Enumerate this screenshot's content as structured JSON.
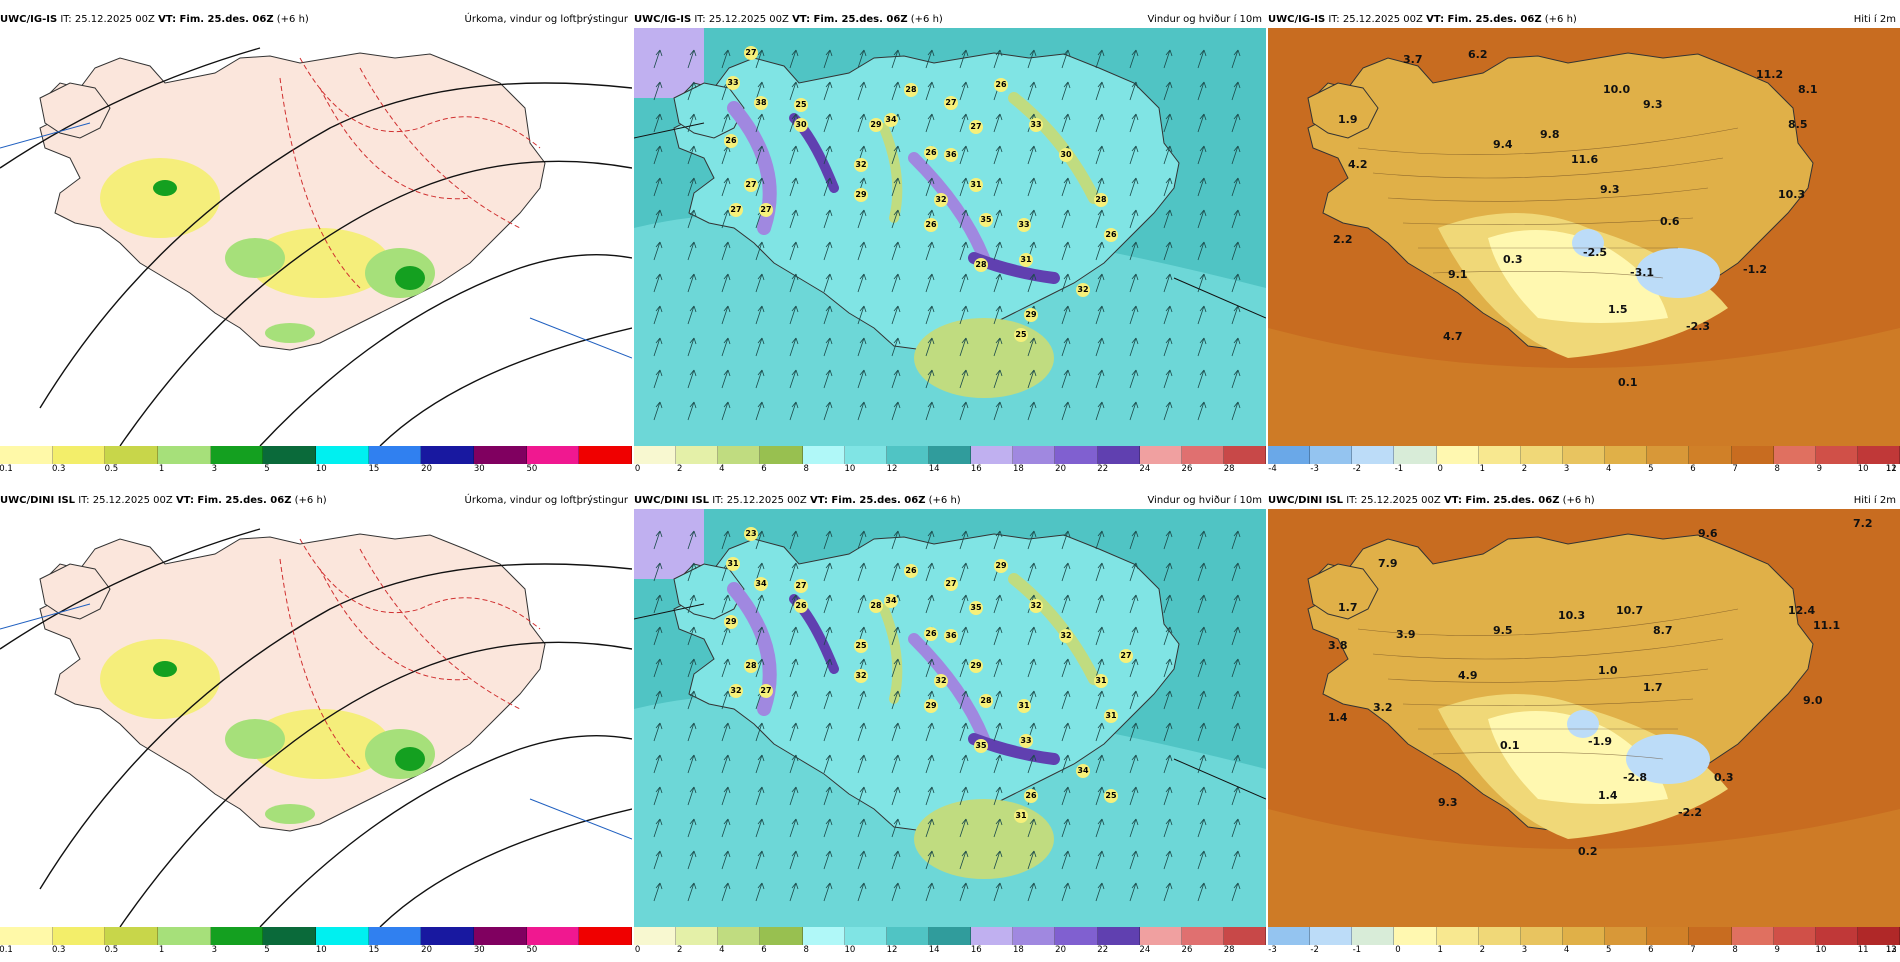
{
  "panels": [
    {
      "model": "UWC/IG-IS",
      "it": "IT: 25.12.2025 00Z",
      "vt": "VT: Fim. 25.des. 06Z",
      "step": "(+6 h)",
      "title": "Úrkoma, vindur og loftþrýstingur",
      "kind": "precip",
      "colorbar": {
        "colors": [
          "#fff9a8",
          "#f3ee6a",
          "#c8d64a",
          "#a6e07a",
          "#14a020",
          "#0a6a3a",
          "#00f0f0",
          "#3080f0",
          "#1818a0",
          "#800060",
          "#f01890",
          "#f00000"
        ],
        "labels": [
          "0.1",
          "0.3",
          "0.5",
          "1",
          "3",
          "5",
          "10",
          "15",
          "20",
          "30",
          "50"
        ]
      },
      "values": []
    },
    {
      "model": "UWC/IG-IS",
      "it": "IT: 25.12.2025 00Z",
      "vt": "VT: Fim. 25.des. 06Z",
      "step": "(+6 h)",
      "title": "Vindur og hviður í 10m",
      "kind": "wind",
      "colorbar": {
        "colors": [
          "#f8f8d0",
          "#e4f0a8",
          "#c0dc80",
          "#98c050",
          "#b0f8f8",
          "#80e4e4",
          "#50c4c4",
          "#309c9c",
          "#c0b0f0",
          "#a088e0",
          "#8060d0",
          "#6040b0",
          "#f0a0a0",
          "#e07070",
          "#c84848"
        ],
        "labels": [
          "0",
          "2",
          "4",
          "6",
          "8",
          "10",
          "12",
          "14",
          "16",
          "18",
          "20",
          "22",
          "24",
          "26",
          "28"
        ]
      },
      "values": [
        "27",
        "33",
        "38",
        "25",
        "30",
        "26",
        "27",
        "27",
        "27",
        "26",
        "28",
        "32",
        "27",
        "27",
        "36",
        "34",
        "29",
        "26",
        "31",
        "33",
        "29",
        "26",
        "32",
        "35",
        "33",
        "28",
        "31",
        "29",
        "25",
        "30",
        "28",
        "26",
        "32"
      ]
    },
    {
      "model": "UWC/IG-IS",
      "it": "IT: 25.12.2025 00Z",
      "vt": "VT: Fim. 25.des. 06Z",
      "step": "(+6 h)",
      "title": "Hiti í 2m",
      "kind": "temp",
      "colorbar": {
        "colors": [
          "#6aa8e8",
          "#94c4f0",
          "#bcdcf8",
          "#d8ecd8",
          "#fff8b0",
          "#f8e890",
          "#f0d878",
          "#e8c460",
          "#e0b048",
          "#d89838",
          "#d08028",
          "#c86c20",
          "#e07060",
          "#d05048",
          "#c03838"
        ],
        "labels": [
          "-4",
          "-3",
          "-2",
          "-1",
          "0",
          "1",
          "2",
          "3",
          "4",
          "5",
          "6",
          "7",
          "8",
          "9",
          "10",
          "11",
          "12"
        ]
      },
      "values": [
        "3.7",
        "6.2",
        "1.9",
        "10.0",
        "9.3",
        "11.2",
        "8.1",
        "4.2",
        "9.4",
        "9.8",
        "11.6",
        "8.5",
        "9.3",
        "10.3",
        "0.6",
        "2.2",
        "0.3",
        "-2.5",
        "-3.1",
        "-1.2",
        "9.1",
        "1.5",
        "-2.3",
        "4.7",
        "0.1"
      ]
    },
    {
      "model": "UWC/DINI ISL",
      "it": "IT: 25.12.2025 00Z",
      "vt": "VT: Fim. 25.des. 06Z",
      "step": "(+6 h)",
      "title": "Úrkoma, vindur og loftþrýstingur",
      "kind": "precip",
      "colorbar": {
        "colors": [
          "#fff9a8",
          "#f3ee6a",
          "#c8d64a",
          "#a6e07a",
          "#14a020",
          "#0a6a3a",
          "#00f0f0",
          "#3080f0",
          "#1818a0",
          "#800060",
          "#f01890",
          "#f00000"
        ],
        "labels": [
          "0.1",
          "0.3",
          "0.5",
          "1",
          "3",
          "5",
          "10",
          "15",
          "20",
          "30",
          "50"
        ]
      },
      "values": []
    },
    {
      "model": "UWC/DINI ISL",
      "it": "IT: 25.12.2025 00Z",
      "vt": "VT: Fim. 25.des. 06Z",
      "step": "(+6 h)",
      "title": "Vindur og hviður í 10m",
      "kind": "wind",
      "colorbar": {
        "colors": [
          "#f8f8d0",
          "#e4f0a8",
          "#c0dc80",
          "#98c050",
          "#b0f8f8",
          "#80e4e4",
          "#50c4c4",
          "#309c9c",
          "#c0b0f0",
          "#a088e0",
          "#8060d0",
          "#6040b0",
          "#f0a0a0",
          "#e07070",
          "#c84848"
        ],
        "labels": [
          "0",
          "2",
          "4",
          "6",
          "8",
          "10",
          "12",
          "14",
          "16",
          "18",
          "20",
          "22",
          "24",
          "26",
          "28"
        ]
      },
      "values": [
        "23",
        "31",
        "34",
        "27",
        "26",
        "29",
        "28",
        "32",
        "27",
        "29",
        "26",
        "25",
        "27",
        "35",
        "36",
        "34",
        "28",
        "26",
        "29",
        "32",
        "32",
        "29",
        "32",
        "28",
        "31",
        "35",
        "33",
        "26",
        "31",
        "32",
        "31",
        "31",
        "34",
        "25",
        "27"
      ]
    },
    {
      "model": "UWC/DINI ISL",
      "it": "IT: 25.12.2025 00Z",
      "vt": "VT: Fim. 25.des. 06Z",
      "step": "(+6 h)",
      "title": "Hiti í 2m",
      "kind": "temp",
      "colorbar": {
        "colors": [
          "#94c4f0",
          "#bcdcf8",
          "#d8ecd8",
          "#fff8b0",
          "#f8e890",
          "#f0d878",
          "#e8c460",
          "#e0b048",
          "#d89838",
          "#d08028",
          "#c86c20",
          "#e07060",
          "#d05048",
          "#c03838",
          "#b02828"
        ],
        "labels": [
          "-3",
          "-2",
          "-1",
          "0",
          "1",
          "2",
          "3",
          "4",
          "5",
          "6",
          "7",
          "8",
          "9",
          "10",
          "11",
          "12",
          "13"
        ]
      },
      "values": [
        "7.9",
        "9.6",
        "7.2",
        "1.7",
        "10.3",
        "10.7",
        "12.4",
        "3.8",
        "3.9",
        "9.5",
        "8.7",
        "11.1",
        "1.0",
        "4.9",
        "1.7",
        "9.0",
        "3.2",
        "1.4",
        "0.1",
        "-1.9",
        "-2.8",
        "0.3",
        "9.3",
        "1.4",
        "-2.2",
        "0.2"
      ]
    }
  ]
}
